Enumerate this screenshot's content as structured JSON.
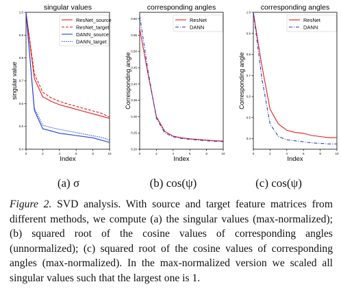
{
  "chart_data": [
    {
      "type": "line",
      "title": "singular values",
      "xlabel": "Index",
      "ylabel": "singular value",
      "xlim": [
        0,
        10
      ],
      "ylim": [
        0.4,
        1.0
      ],
      "x": [
        0,
        1,
        2,
        3,
        4,
        5,
        6,
        7,
        8,
        9,
        10
      ],
      "xticks": [
        "0",
        "2",
        "4",
        "6",
        "8",
        "10"
      ],
      "yticks": [
        "0.4",
        "0.5",
        "0.6",
        "0.7",
        "0.8",
        "0.9",
        "1.0"
      ],
      "legend": "top-right",
      "series": [
        {
          "name": "ResNet_source",
          "color": "#e31a1c",
          "dash": "solid",
          "values": [
            1.0,
            0.71,
            0.63,
            0.61,
            0.595,
            0.585,
            0.575,
            0.565,
            0.555,
            0.545,
            0.535
          ]
        },
        {
          "name": "ResNet_target",
          "color": "#e31a1c",
          "dash": "dashed",
          "values": [
            1.0,
            0.73,
            0.65,
            0.625,
            0.61,
            0.598,
            0.588,
            0.578,
            0.568,
            0.558,
            0.54
          ]
        },
        {
          "name": "DANN_source",
          "color": "#1f3fd6",
          "dash": "solid",
          "values": [
            1.0,
            0.57,
            0.49,
            0.48,
            0.47,
            0.465,
            0.46,
            0.455,
            0.45,
            0.44,
            0.43
          ]
        },
        {
          "name": "DANN_target",
          "color": "#1f3fd6",
          "dash": "dotted",
          "values": [
            1.0,
            0.58,
            0.505,
            0.495,
            0.487,
            0.48,
            0.473,
            0.466,
            0.459,
            0.452,
            0.44
          ]
        }
      ]
    },
    {
      "type": "line",
      "title": "corresponding angles",
      "xlabel": "Index",
      "ylabel": "Corresponding angle",
      "xlim": [
        0,
        10
      ],
      "ylim": [
        0.2,
        0.62
      ],
      "x": [
        0,
        1,
        2,
        3,
        4,
        5,
        6,
        7,
        8,
        9,
        10
      ],
      "xticks": [
        "0",
        "2",
        "4",
        "6",
        "8",
        "10"
      ],
      "yticks": [
        "0.20",
        "0.25",
        "0.30",
        "0.35",
        "0.40",
        "0.45",
        "0.50",
        "0.55",
        "0.60"
      ],
      "legend": "top-right",
      "series": [
        {
          "name": "ResNet",
          "color": "#e31a1c",
          "dash": "solid",
          "values": [
            0.57,
            0.43,
            0.3,
            0.255,
            0.24,
            0.235,
            0.232,
            0.23,
            0.228,
            0.226,
            0.225
          ]
        },
        {
          "name": "DANN",
          "color": "#1f3fd6",
          "dash": "dashdot",
          "values": [
            0.61,
            0.44,
            0.295,
            0.25,
            0.238,
            0.233,
            0.23,
            0.228,
            0.226,
            0.224,
            0.223
          ]
        }
      ]
    },
    {
      "type": "line",
      "title": "corresponding angles",
      "xlabel": "Index",
      "ylabel": "Corresponding angle",
      "xlim": [
        0,
        10
      ],
      "ylim": [
        0.35,
        1.0
      ],
      "x": [
        0,
        1,
        2,
        3,
        4,
        5,
        6,
        7,
        8,
        9,
        10
      ],
      "xticks": [
        "0",
        "2",
        "4",
        "6",
        "8",
        "10"
      ],
      "yticks": [
        "0.4",
        "0.5",
        "0.6",
        "0.7",
        "0.8",
        "0.9",
        "1.0"
      ],
      "legend": "top-right",
      "series": [
        {
          "name": "ResNet",
          "color": "#e31a1c",
          "dash": "solid",
          "values": [
            1.0,
            0.75,
            0.54,
            0.47,
            0.44,
            0.43,
            0.425,
            0.415,
            0.41,
            0.405,
            0.405
          ]
        },
        {
          "name": "DANN",
          "color": "#1f3fd6",
          "dash": "dashdot",
          "values": [
            1.0,
            0.69,
            0.47,
            0.41,
            0.395,
            0.39,
            0.385,
            0.38,
            0.378,
            0.375,
            0.375
          ]
        }
      ]
    }
  ],
  "subcaptions": [
    "(a) σ",
    "(b) cos(ψ)",
    "(c) cos(ψ)"
  ],
  "caption": {
    "label": "Figure 2.",
    "text": "SVD analysis. With source and target feature matrices from different methods, we compute (a) the singular values (max-normalized); (b) squared root of the cosine values of corresponding angles (unnormalized); (c) squared root of the cosine values of corresponding angles (max-normalized). In the max-normalized version we scaled all singular values such that the largest one is 1."
  }
}
